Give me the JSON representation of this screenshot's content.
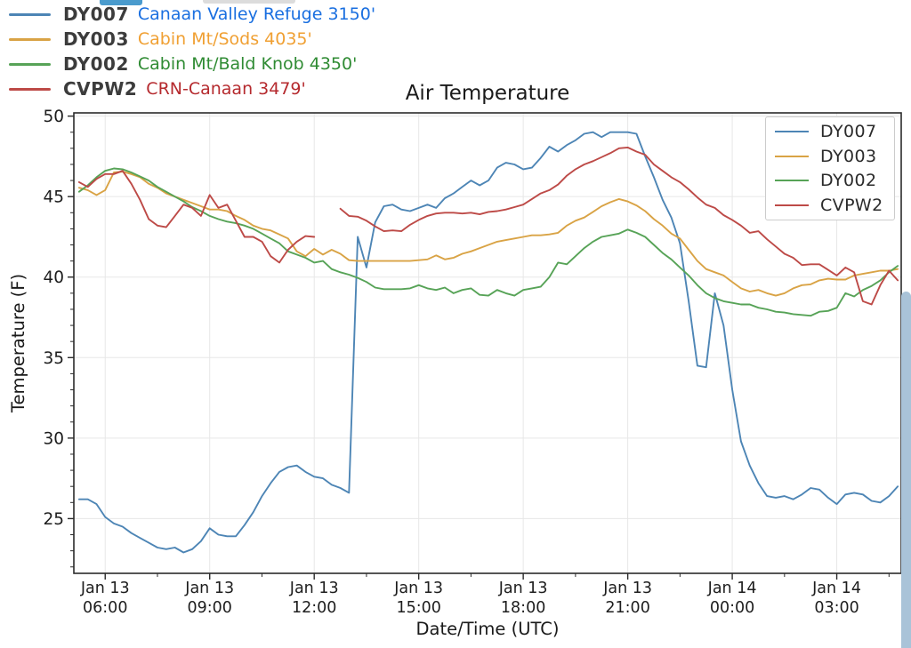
{
  "artifacts": {
    "top_blue_bar_color": "#4a9bcd",
    "top_gray_bar_color": "#dcdcdc",
    "scrollbar_color": "#a9c3d8"
  },
  "header_legend": {
    "items": [
      {
        "id": "DY007",
        "desc": "Canaan Valley Refuge 3150'",
        "line_color": "#4d85b5",
        "text_color": "#1a6fe0"
      },
      {
        "id": "DY003",
        "desc": "Cabin Mt/Sods 4035'",
        "line_color": "#d9a345",
        "text_color": "#f0a033"
      },
      {
        "id": "DY002",
        "desc": "Cabin Mt/Bald Knob 4350'",
        "line_color": "#57a357",
        "text_color": "#2f8b33"
      },
      {
        "id": "CVPW2",
        "desc": "CRN-Canaan 3479'",
        "line_color": "#bd4a47",
        "text_color": "#b52a2e"
      }
    ]
  },
  "chart_data": {
    "type": "line",
    "title": "Air Temperature",
    "xlabel": "Date/Time (UTC)",
    "ylabel": "Temperature (F)",
    "grid": true,
    "legend_position": "upper right",
    "x_start_hour": 5.25,
    "x_step_hours": 0.25,
    "xlim_hours": [
      5.1,
      28.85
    ],
    "ylim": [
      21.6,
      50.2
    ],
    "y_ticks": [
      25,
      30,
      35,
      40,
      45,
      50
    ],
    "x_ticks": [
      {
        "hour": 6,
        "date": "Jan 13",
        "time": "06:00"
      },
      {
        "hour": 9,
        "date": "Jan 13",
        "time": "09:00"
      },
      {
        "hour": 12,
        "date": "Jan 13",
        "time": "12:00"
      },
      {
        "hour": 15,
        "date": "Jan 13",
        "time": "15:00"
      },
      {
        "hour": 18,
        "date": "Jan 13",
        "time": "18:00"
      },
      {
        "hour": 21,
        "date": "Jan 13",
        "time": "21:00"
      },
      {
        "hour": 24,
        "date": "Jan 14",
        "time": "00:00"
      },
      {
        "hour": 27,
        "date": "Jan 14",
        "time": "03:00"
      }
    ],
    "x_minor_tick_hours": [
      7.5,
      10.5,
      13.5,
      16.5,
      19.5,
      22.5,
      25.5,
      28.5
    ],
    "series": [
      {
        "name": "DY007",
        "station": "Canaan Valley Refuge 3150'",
        "color": "#4d85b5",
        "values": [
          26.2,
          26.2,
          25.9,
          25.1,
          24.7,
          24.5,
          24.1,
          23.8,
          23.5,
          23.2,
          23.1,
          23.2,
          22.9,
          23.1,
          23.6,
          24.4,
          24.0,
          23.9,
          23.9,
          24.6,
          25.4,
          26.4,
          27.2,
          27.9,
          28.2,
          28.3,
          27.9,
          27.6,
          27.5,
          27.1,
          26.9,
          26.6,
          42.5,
          40.6,
          43.4,
          44.4,
          44.5,
          44.2,
          44.1,
          44.3,
          44.5,
          44.3,
          44.9,
          45.2,
          45.6,
          46.0,
          45.7,
          46.0,
          46.8,
          47.1,
          47.0,
          46.7,
          46.8,
          47.4,
          48.1,
          47.8,
          48.2,
          48.5,
          48.9,
          49.0,
          48.7,
          49.0,
          49.0,
          49.0,
          48.9,
          47.5,
          46.2,
          44.8,
          43.7,
          42.1,
          38.5,
          34.5,
          34.4,
          39.0,
          37.0,
          33.0,
          29.8,
          28.3,
          27.2,
          26.4,
          26.3,
          26.4,
          26.2,
          26.5,
          26.9,
          26.8,
          26.3,
          25.9,
          26.5,
          26.6,
          26.5,
          26.1,
          26.0,
          26.4,
          27.0
        ]
      },
      {
        "name": "DY003",
        "station": "Cabin Mt/Sods 4035'",
        "color": "#d9a345",
        "values": [
          45.55,
          45.4,
          45.1,
          45.4,
          46.5,
          46.55,
          46.4,
          46.2,
          45.8,
          45.55,
          45.2,
          45.0,
          44.8,
          44.6,
          44.4,
          44.2,
          44.2,
          44.1,
          43.8,
          43.55,
          43.2,
          43.0,
          42.9,
          42.65,
          42.4,
          41.6,
          41.3,
          41.75,
          41.4,
          41.7,
          41.45,
          41.05,
          41.0,
          41.0,
          41.0,
          41.0,
          41.0,
          41.0,
          41.0,
          41.05,
          41.1,
          41.35,
          41.1,
          41.2,
          41.45,
          41.6,
          41.8,
          42.0,
          42.2,
          42.3,
          42.4,
          42.5,
          42.6,
          42.6,
          42.65,
          42.75,
          43.2,
          43.5,
          43.7,
          44.05,
          44.4,
          44.65,
          44.85,
          44.7,
          44.45,
          44.1,
          43.6,
          43.2,
          42.7,
          42.4,
          41.7,
          41.0,
          40.5,
          40.3,
          40.1,
          39.7,
          39.3,
          39.1,
          39.2,
          39.0,
          38.85,
          39.0,
          39.3,
          39.5,
          39.55,
          39.8,
          39.9,
          39.85,
          39.85,
          40.1,
          40.2,
          40.3,
          40.4,
          40.4,
          40.5
        ]
      },
      {
        "name": "DY002",
        "station": "Cabin Mt/Bald Knob 4350'",
        "color": "#57a357",
        "values": [
          45.3,
          45.7,
          46.2,
          46.6,
          46.75,
          46.7,
          46.5,
          46.25,
          46.0,
          45.6,
          45.3,
          45.0,
          44.7,
          44.35,
          44.1,
          43.8,
          43.6,
          43.45,
          43.35,
          43.2,
          43.0,
          42.7,
          42.4,
          42.1,
          41.6,
          41.4,
          41.2,
          40.9,
          41.0,
          40.5,
          40.3,
          40.15,
          39.95,
          39.7,
          39.35,
          39.25,
          39.25,
          39.25,
          39.3,
          39.5,
          39.3,
          39.2,
          39.35,
          39.0,
          39.2,
          39.3,
          38.9,
          38.85,
          39.2,
          39.0,
          38.85,
          39.2,
          39.3,
          39.4,
          40.0,
          40.9,
          40.8,
          41.3,
          41.8,
          42.2,
          42.5,
          42.6,
          42.7,
          42.95,
          42.75,
          42.5,
          42.0,
          41.5,
          41.1,
          40.6,
          40.1,
          39.5,
          39.0,
          38.7,
          38.5,
          38.4,
          38.3,
          38.3,
          38.1,
          38.0,
          37.85,
          37.8,
          37.7,
          37.65,
          37.6,
          37.85,
          37.9,
          38.1,
          39.0,
          38.8,
          39.2,
          39.45,
          39.8,
          40.3,
          40.7
        ]
      },
      {
        "name": "CVPW2",
        "station": "CRN-Canaan 3479'",
        "color": "#bd4a47",
        "values": [
          45.9,
          45.6,
          46.1,
          46.4,
          46.4,
          46.6,
          45.8,
          44.8,
          43.6,
          43.2,
          43.1,
          43.8,
          44.5,
          44.3,
          43.8,
          45.1,
          44.3,
          44.5,
          43.5,
          42.5,
          42.5,
          42.2,
          41.3,
          40.9,
          41.7,
          42.2,
          42.55,
          42.5,
          null,
          null,
          44.25,
          43.8,
          43.75,
          43.5,
          43.15,
          42.85,
          42.9,
          42.85,
          43.25,
          43.55,
          43.8,
          43.95,
          44.0,
          44.0,
          43.95,
          44.0,
          43.9,
          44.05,
          44.1,
          44.2,
          44.35,
          44.5,
          44.85,
          45.2,
          45.4,
          45.75,
          46.3,
          46.7,
          47.0,
          47.2,
          47.45,
          47.7,
          48.0,
          48.05,
          47.8,
          47.6,
          47.0,
          46.6,
          46.2,
          45.9,
          45.45,
          44.95,
          44.5,
          44.3,
          43.85,
          43.55,
          43.2,
          42.75,
          42.85,
          42.35,
          41.9,
          41.45,
          41.2,
          40.75,
          40.8,
          40.8,
          40.45,
          40.1,
          40.6,
          40.3,
          38.5,
          38.3,
          39.5,
          40.4,
          39.8
        ]
      }
    ]
  }
}
